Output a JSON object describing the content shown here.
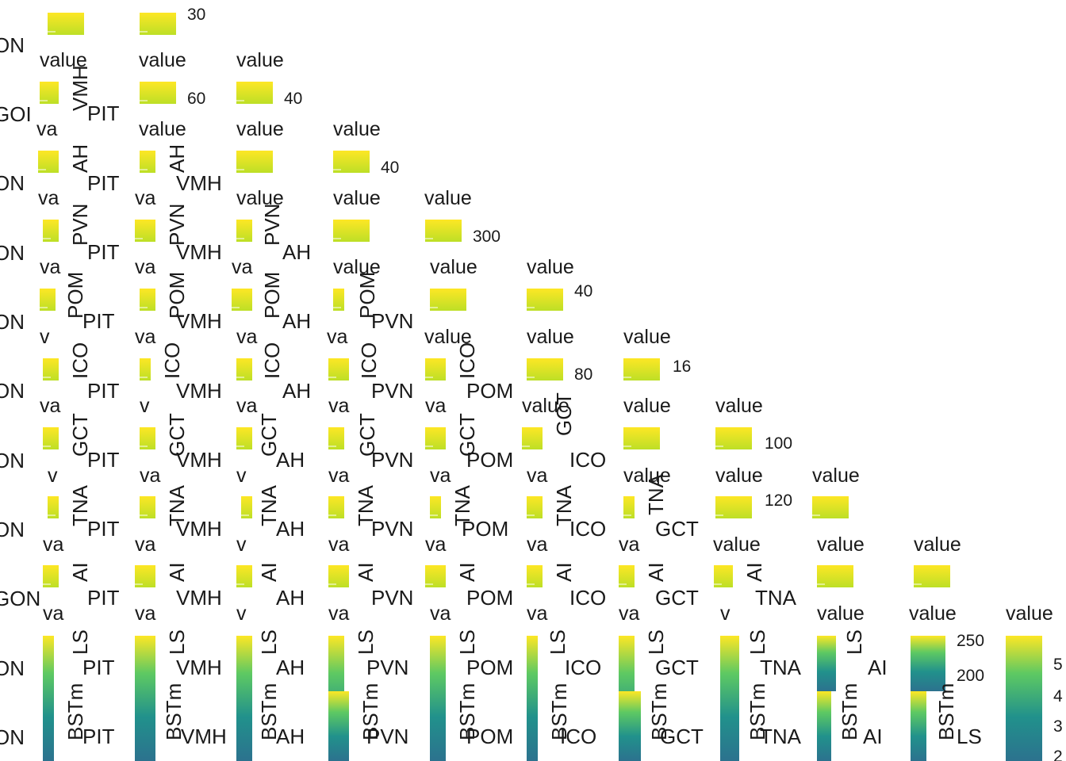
{
  "chart_data": {
    "type": "heatmap",
    "colors": {
      "low": "#2a788e",
      "mid": "#22a884",
      "high": "#fde725",
      "mid2": "#7ad151"
    },
    "row_labels": [
      "ON",
      "GOI",
      "ON",
      "ON",
      "ON",
      "ON",
      "ON",
      "ON",
      "GON",
      "ON",
      "ON"
    ],
    "legend_title": "value",
    "legend_ticks": [
      "30",
      "60",
      "40",
      "40",
      "300",
      "40",
      "80",
      "16",
      "100",
      "120",
      "250",
      "200",
      "5",
      "4",
      "3",
      "2"
    ],
    "truncated_titles": [
      "va",
      "v",
      "va",
      "va",
      "va"
    ],
    "regions": [
      "PIT",
      "VMH",
      "AH",
      "PVN",
      "POM",
      "ICO",
      "GCT",
      "TNA",
      "AI",
      "LS",
      "BSTm"
    ]
  }
}
